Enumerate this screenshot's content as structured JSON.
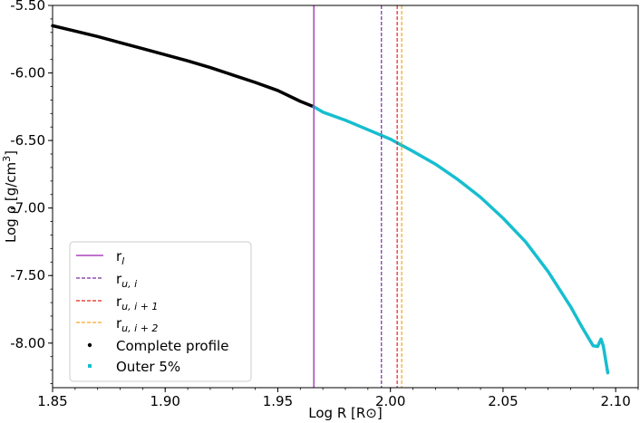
{
  "chart_data": {
    "type": "line",
    "xlabel": "Log R [R⊙]",
    "ylabel_main": "Log ρ [g/cm",
    "ylabel_sup": "3",
    "ylabel_end": "]",
    "xlim": [
      1.85,
      2.11
    ],
    "ylim": [
      -8.33,
      -5.5
    ],
    "x_ticks": [
      1.85,
      1.9,
      1.95,
      2.0,
      2.05,
      2.1
    ],
    "x_tick_labels": [
      "1.85",
      "1.90",
      "1.95",
      "2.00",
      "2.05",
      "2.10"
    ],
    "y_ticks": [
      -5.5,
      -6.0,
      -6.5,
      -7.0,
      -7.5,
      -8.0
    ],
    "y_tick_labels": [
      "-5.50",
      "-6.00",
      "-6.50",
      "-7.00",
      "-7.50",
      "-8.00"
    ],
    "grid": false,
    "legend_placement": "lower-left",
    "vlines": [
      {
        "label_main": "r",
        "label_sub": "l",
        "x": 1.966,
        "color": "#aa44bb",
        "style": "solid"
      },
      {
        "label_main": "r",
        "label_sub": "u, i",
        "x": 1.996,
        "color": "#7b2d9f",
        "style": "dashed"
      },
      {
        "label_main": "r",
        "label_sub": "u, i + 1",
        "x": 2.003,
        "color": "#e8241c",
        "style": "dashed"
      },
      {
        "label_main": "r",
        "label_sub": "u, i + 2",
        "x": 2.005,
        "color": "#f5a623",
        "style": "dashed"
      }
    ],
    "series": [
      {
        "name": "Complete profile",
        "color": "#000000",
        "x": [
          1.85,
          1.86,
          1.87,
          1.88,
          1.89,
          1.9,
          1.91,
          1.92,
          1.93,
          1.94,
          1.95,
          1.96,
          1.966
        ],
        "y": [
          -5.65,
          -5.69,
          -5.73,
          -5.775,
          -5.82,
          -5.865,
          -5.91,
          -5.96,
          -6.015,
          -6.07,
          -6.13,
          -6.21,
          -6.25
        ]
      },
      {
        "name": "Outer 5%",
        "color": "#17becf",
        "x": [
          1.966,
          1.97,
          1.98,
          1.99,
          2.0,
          2.01,
          2.02,
          2.03,
          2.04,
          2.05,
          2.06,
          2.07,
          2.08,
          2.085,
          2.09,
          2.092,
          2.0935,
          2.0945,
          2.0955,
          2.0965
        ],
        "y": [
          -6.25,
          -6.29,
          -6.35,
          -6.42,
          -6.49,
          -6.58,
          -6.675,
          -6.79,
          -6.92,
          -7.075,
          -7.25,
          -7.47,
          -7.73,
          -7.88,
          -8.02,
          -8.025,
          -7.97,
          -8.02,
          -8.12,
          -8.22
        ]
      }
    ]
  }
}
